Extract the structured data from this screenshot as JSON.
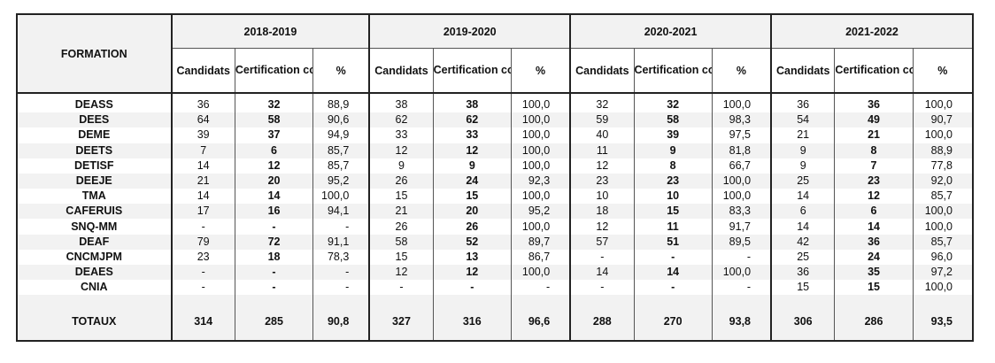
{
  "header": {
    "formation": "FORMATION",
    "years": [
      "2018-2019",
      "2019-2020",
      "2020-2021",
      "2021-2022"
    ],
    "subcols": {
      "candidats": "Candidats",
      "certification": "Certification complète",
      "pct": "%"
    }
  },
  "rows": [
    {
      "name": "DEASS",
      "v": [
        [
          "36",
          "32",
          "88,9"
        ],
        [
          "38",
          "38",
          "100,0"
        ],
        [
          "32",
          "32",
          "100,0"
        ],
        [
          "36",
          "36",
          "100,0"
        ]
      ]
    },
    {
      "name": "DEES",
      "v": [
        [
          "64",
          "58",
          "90,6"
        ],
        [
          "62",
          "62",
          "100,0"
        ],
        [
          "59",
          "58",
          "98,3"
        ],
        [
          "54",
          "49",
          "90,7"
        ]
      ]
    },
    {
      "name": "DEME",
      "v": [
        [
          "39",
          "37",
          "94,9"
        ],
        [
          "33",
          "33",
          "100,0"
        ],
        [
          "40",
          "39",
          "97,5"
        ],
        [
          "21",
          "21",
          "100,0"
        ]
      ]
    },
    {
      "name": "DEETS",
      "v": [
        [
          "7",
          "6",
          "85,7"
        ],
        [
          "12",
          "12",
          "100,0"
        ],
        [
          "11",
          "9",
          "81,8"
        ],
        [
          "9",
          "8",
          "88,9"
        ]
      ]
    },
    {
      "name": "DETISF",
      "v": [
        [
          "14",
          "12",
          "85,7"
        ],
        [
          "9",
          "9",
          "100,0"
        ],
        [
          "12",
          "8",
          "66,7"
        ],
        [
          "9",
          "7",
          "77,8"
        ]
      ]
    },
    {
      "name": "DEEJE",
      "v": [
        [
          "21",
          "20",
          "95,2"
        ],
        [
          "26",
          "24",
          "92,3"
        ],
        [
          "23",
          "23",
          "100,0"
        ],
        [
          "25",
          "23",
          "92,0"
        ]
      ]
    },
    {
      "name": "TMA",
      "v": [
        [
          "14",
          "14",
          "100,0"
        ],
        [
          "15",
          "15",
          "100,0"
        ],
        [
          "10",
          "10",
          "100,0"
        ],
        [
          "14",
          "12",
          "85,7"
        ]
      ]
    },
    {
      "name": "CAFERUIS",
      "v": [
        [
          "17",
          "16",
          "94,1"
        ],
        [
          "21",
          "20",
          "95,2"
        ],
        [
          "18",
          "15",
          "83,3"
        ],
        [
          "6",
          "6",
          "100,0"
        ]
      ]
    },
    {
      "name": "SNQ-MM",
      "v": [
        [
          "-",
          "-",
          "-"
        ],
        [
          "26",
          "26",
          "100,0"
        ],
        [
          "12",
          "11",
          "91,7"
        ],
        [
          "14",
          "14",
          "100,0"
        ]
      ]
    },
    {
      "name": "DEAF",
      "v": [
        [
          "79",
          "72",
          "91,1"
        ],
        [
          "58",
          "52",
          "89,7"
        ],
        [
          "57",
          "51",
          "89,5"
        ],
        [
          "42",
          "36",
          "85,7"
        ]
      ]
    },
    {
      "name": "CNCMJPM",
      "v": [
        [
          "23",
          "18",
          "78,3"
        ],
        [
          "15",
          "13",
          "86,7"
        ],
        [
          "-",
          "-",
          "-"
        ],
        [
          "25",
          "24",
          "96,0"
        ]
      ]
    },
    {
      "name": "DEAES",
      "v": [
        [
          "-",
          "-",
          "-"
        ],
        [
          "12",
          "12",
          "100,0"
        ],
        [
          "14",
          "14",
          "100,0"
        ],
        [
          "36",
          "35",
          "97,2"
        ]
      ]
    },
    {
      "name": "CNIA",
      "v": [
        [
          "-",
          "-",
          "-"
        ],
        [
          "-",
          "-",
          "-"
        ],
        [
          "-",
          "-",
          "-"
        ],
        [
          "15",
          "15",
          "100,0"
        ]
      ]
    }
  ],
  "totals": {
    "name": "TOTAUX",
    "v": [
      [
        "314",
        "285",
        "90,8"
      ],
      [
        "327",
        "316",
        "96,6"
      ],
      [
        "288",
        "270",
        "93,8"
      ],
      [
        "306",
        "286",
        "93,5"
      ]
    ]
  }
}
